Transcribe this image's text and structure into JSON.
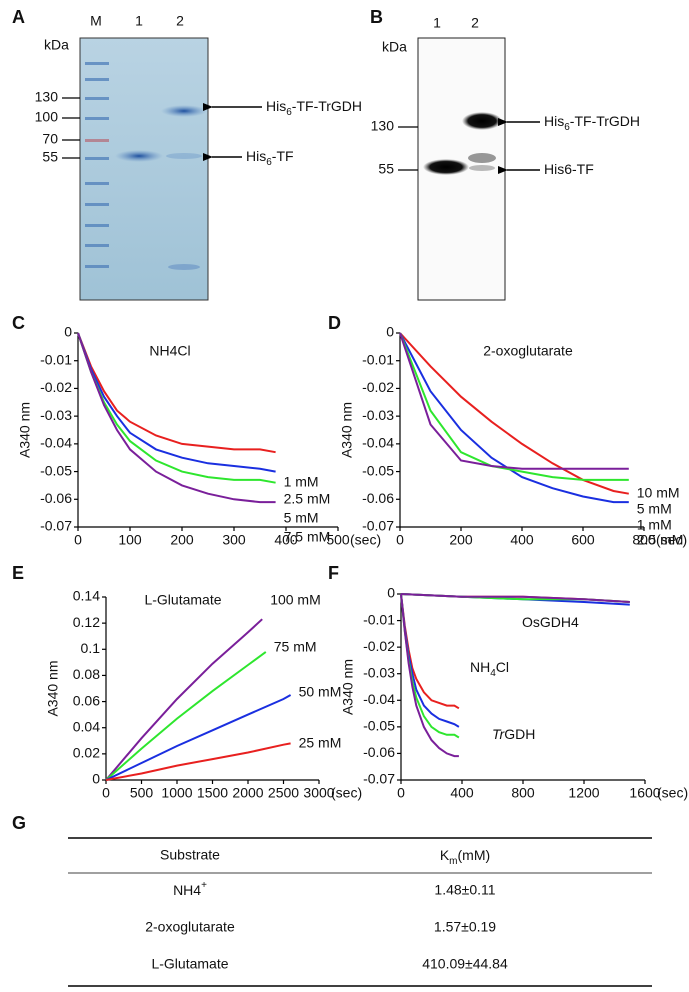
{
  "chart_data": [
    {
      "type": "line",
      "panel": "C",
      "title": "NH4Cl",
      "y_label": "A340 nm",
      "x_unit": "(sec)",
      "xlim": [
        0,
        500
      ],
      "xticks": [
        0,
        100,
        200,
        300,
        400,
        500
      ],
      "ylim": [
        -0.07,
        0
      ],
      "yticks": [
        0,
        -0.01,
        -0.02,
        -0.03,
        -0.04,
        -0.05,
        -0.06,
        -0.07
      ],
      "series": [
        {
          "name": "1 mM",
          "color": "#e8201f",
          "x": [
            0,
            25,
            50,
            75,
            100,
            150,
            200,
            250,
            300,
            350,
            380
          ],
          "values": [
            0,
            -0.012,
            -0.021,
            -0.028,
            -0.032,
            -0.037,
            -0.04,
            -0.041,
            -0.042,
            -0.042,
            -0.043
          ]
        },
        {
          "name": "2.5 mM",
          "color": "#1a2fe0",
          "x": [
            0,
            25,
            50,
            75,
            100,
            150,
            200,
            250,
            300,
            350,
            380
          ],
          "values": [
            0,
            -0.013,
            -0.023,
            -0.03,
            -0.036,
            -0.042,
            -0.045,
            -0.047,
            -0.048,
            -0.049,
            -0.05
          ]
        },
        {
          "name": "5 mM",
          "color": "#2ee62e",
          "x": [
            0,
            25,
            50,
            75,
            100,
            150,
            200,
            250,
            300,
            350,
            380
          ],
          "values": [
            0,
            -0.014,
            -0.025,
            -0.033,
            -0.039,
            -0.046,
            -0.05,
            -0.052,
            -0.053,
            -0.053,
            -0.054
          ]
        },
        {
          "name": "7.5 mM",
          "color": "#7a1f9a",
          "x": [
            0,
            25,
            50,
            75,
            100,
            150,
            200,
            250,
            300,
            350,
            380
          ],
          "values": [
            0,
            -0.014,
            -0.026,
            -0.035,
            -0.042,
            -0.05,
            -0.055,
            -0.058,
            -0.06,
            -0.061,
            -0.061
          ]
        }
      ]
    },
    {
      "type": "line",
      "panel": "D",
      "title": "2-oxoglutarate",
      "y_label": "A340 nm",
      "x_unit": "(sec)",
      "xlim": [
        0,
        800
      ],
      "xticks": [
        0,
        200,
        400,
        600,
        800
      ],
      "ylim": [
        -0.07,
        0
      ],
      "yticks": [
        0,
        -0.01,
        -0.02,
        -0.03,
        -0.04,
        -0.05,
        -0.06,
        -0.07
      ],
      "series": [
        {
          "name": "1 mM",
          "color": "#e8201f",
          "x": [
            0,
            100,
            200,
            300,
            400,
            500,
            600,
            700,
            750
          ],
          "values": [
            0,
            -0.012,
            -0.023,
            -0.032,
            -0.04,
            -0.047,
            -0.053,
            -0.057,
            -0.058
          ]
        },
        {
          "name": "2.5 mM",
          "color": "#1a2fe0",
          "x": [
            0,
            100,
            200,
            300,
            400,
            500,
            600,
            700,
            750
          ],
          "values": [
            0,
            -0.021,
            -0.035,
            -0.045,
            -0.052,
            -0.056,
            -0.059,
            -0.061,
            -0.061
          ]
        },
        {
          "name": "5 mM",
          "color": "#2ee62e",
          "x": [
            0,
            100,
            200,
            300,
            400,
            500,
            600,
            700,
            750
          ],
          "values": [
            0,
            -0.028,
            -0.043,
            -0.048,
            -0.05,
            -0.052,
            -0.053,
            -0.053,
            -0.053
          ]
        },
        {
          "name": "10 mM",
          "color": "#7a1f9a",
          "x": [
            0,
            100,
            200,
            300,
            400,
            500,
            600,
            700,
            750
          ],
          "values": [
            0,
            -0.033,
            -0.046,
            -0.048,
            -0.049,
            -0.049,
            -0.049,
            -0.049,
            -0.049
          ]
        }
      ]
    },
    {
      "type": "line",
      "panel": "E",
      "title": "L-Glutamate",
      "y_label": "A340 nm",
      "x_unit": "(sec)",
      "xlim": [
        0,
        3000
      ],
      "xticks": [
        0,
        500,
        1000,
        1500,
        2000,
        2500,
        3000
      ],
      "ylim": [
        0,
        0.14
      ],
      "yticks": [
        0,
        0.02,
        0.04,
        0.06,
        0.08,
        0.1,
        0.12,
        0.14
      ],
      "series": [
        {
          "name": "100 mM",
          "color": "#7a1f9a",
          "x": [
            0,
            500,
            1000,
            1500,
            2000,
            2200
          ],
          "values": [
            0,
            0.032,
            0.062,
            0.089,
            0.113,
            0.123
          ]
        },
        {
          "name": "75 mM",
          "color": "#2ee62e",
          "x": [
            0,
            500,
            1000,
            1500,
            2000,
            2250
          ],
          "values": [
            0,
            0.024,
            0.047,
            0.068,
            0.088,
            0.098
          ]
        },
        {
          "name": "50 mM",
          "color": "#1a2fe0",
          "x": [
            0,
            500,
            1000,
            1500,
            2000,
            2500,
            2600
          ],
          "values": [
            0,
            0.013,
            0.026,
            0.038,
            0.05,
            0.062,
            0.065
          ]
        },
        {
          "name": "25 mM",
          "color": "#e8201f",
          "x": [
            0,
            500,
            1000,
            1500,
            2000,
            2500,
            2600
          ],
          "values": [
            0,
            0.005,
            0.011,
            0.016,
            0.021,
            0.027,
            0.028
          ]
        }
      ]
    },
    {
      "type": "line",
      "panel": "F",
      "y_label": "A340 nm",
      "x_unit": "(sec)",
      "xlim": [
        0,
        1600
      ],
      "xticks": [
        0,
        400,
        800,
        1200,
        1600
      ],
      "ylim": [
        -0.07,
        0
      ],
      "yticks": [
        0,
        -0.01,
        -0.02,
        -0.03,
        -0.04,
        -0.05,
        -0.06,
        -0.07
      ],
      "annotations": [
        {
          "text": "OsGDH4"
        },
        {
          "main": "NH",
          "sub": "4",
          "after": "Cl"
        },
        {
          "italic": "Tr",
          "after": "GDH"
        }
      ],
      "series": [
        {
          "color": "#e8201f",
          "x": [
            0,
            400,
            800,
            1200,
            1500
          ],
          "values": [
            0,
            -0.001,
            -0.001,
            -0.002,
            -0.003
          ]
        },
        {
          "color": "#1a2fe0",
          "x": [
            0,
            400,
            800,
            1200,
            1500
          ],
          "values": [
            0,
            -0.001,
            -0.002,
            -0.003,
            -0.004
          ]
        },
        {
          "color": "#2ee62e",
          "x": [
            0,
            400,
            800,
            1200,
            1500
          ],
          "values": [
            0,
            -0.001,
            -0.002,
            -0.002,
            -0.003
          ]
        },
        {
          "color": "#7a1f9a",
          "x": [
            0,
            400,
            800,
            1200,
            1500
          ],
          "values": [
            0,
            -0.001,
            -0.001,
            -0.002,
            -0.003
          ]
        },
        {
          "color": "#e8201f",
          "x": [
            0,
            25,
            50,
            75,
            100,
            150,
            200,
            250,
            300,
            350,
            380
          ],
          "values": [
            0,
            -0.012,
            -0.021,
            -0.028,
            -0.032,
            -0.037,
            -0.04,
            -0.041,
            -0.042,
            -0.042,
            -0.043
          ]
        },
        {
          "color": "#1a2fe0",
          "x": [
            0,
            25,
            50,
            75,
            100,
            150,
            200,
            250,
            300,
            350,
            380
          ],
          "values": [
            0,
            -0.013,
            -0.023,
            -0.03,
            -0.036,
            -0.042,
            -0.045,
            -0.047,
            -0.048,
            -0.049,
            -0.05
          ]
        },
        {
          "color": "#2ee62e",
          "x": [
            0,
            25,
            50,
            75,
            100,
            150,
            200,
            250,
            300,
            350,
            380
          ],
          "values": [
            0,
            -0.014,
            -0.025,
            -0.033,
            -0.039,
            -0.046,
            -0.05,
            -0.052,
            -0.053,
            -0.053,
            -0.054
          ]
        },
        {
          "color": "#7a1f9a",
          "x": [
            0,
            25,
            50,
            75,
            100,
            150,
            200,
            250,
            300,
            350,
            380
          ],
          "values": [
            0,
            -0.014,
            -0.026,
            -0.035,
            -0.042,
            -0.05,
            -0.055,
            -0.058,
            -0.06,
            -0.061,
            -0.061
          ]
        }
      ]
    }
  ],
  "gels": [
    {
      "panel": "A",
      "unit": "kDa",
      "lanes": [
        "M",
        "1",
        "2"
      ],
      "markers": [
        130,
        100,
        70,
        55
      ],
      "arrows": [
        {
          "main": "His",
          "sub": "6",
          "after": "-TF-TrGDH"
        },
        {
          "main": "His",
          "sub": "6",
          "after": "-TF"
        }
      ]
    },
    {
      "panel": "B",
      "unit": "kDa",
      "lanes": [
        "1",
        "2"
      ],
      "markers": [
        130,
        55
      ],
      "arrows": [
        {
          "main": "His",
          "sub": "6",
          "after": "-TF-TrGDH"
        },
        {
          "text": "His6-TF"
        }
      ]
    }
  ],
  "table": {
    "panel": "G",
    "header": [
      "Substrate",
      {
        "main": "K",
        "sub": "m",
        "after": "(mM)"
      }
    ],
    "rows": [
      [
        {
          "main": "NH4",
          "sup": "+"
        },
        "1.48±0.11"
      ],
      [
        "2-oxoglutarate",
        "1.57±0.19"
      ],
      [
        "L-Glutamate",
        "410.09±44.84"
      ]
    ]
  }
}
